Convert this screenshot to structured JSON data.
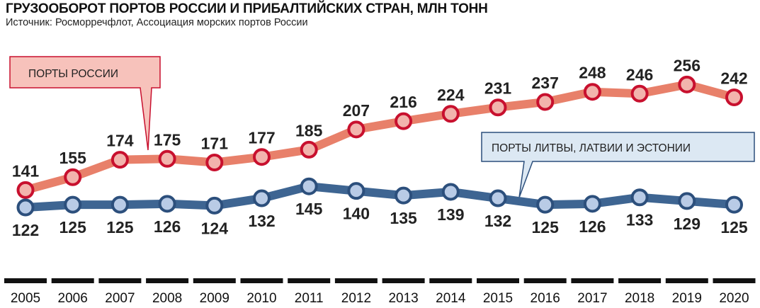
{
  "title": "ГРУЗООБОРОТ ПОРТОВ РОССИИ И ПРИБАЛТИЙСКИХ СТРАН, МЛН ТОНН",
  "subtitle": "Источник: Росморречфлот, Ассоциация морских портов России",
  "chart_data": {
    "type": "line",
    "categories": [
      "2005",
      "2006",
      "2007",
      "2008",
      "2009",
      "2010",
      "2011",
      "2012",
      "2013",
      "2014",
      "2015",
      "2016",
      "2017",
      "2018",
      "2019",
      "2020"
    ],
    "series": [
      {
        "name": "ПОРТЫ РОССИИ",
        "color": "#e8806a",
        "marker_border": "#c8102e",
        "values": [
          141,
          155,
          174,
          175,
          171,
          177,
          185,
          207,
          216,
          224,
          231,
          237,
          248,
          246,
          256,
          242
        ]
      },
      {
        "name": "ПОРТЫ ЛИТВЫ, ЛАТВИИ И ЭСТОНИИ",
        "color": "#3e6592",
        "marker_border": "#2c4f7c",
        "values": [
          122,
          125,
          125,
          126,
          124,
          132,
          145,
          140,
          135,
          139,
          132,
          125,
          126,
          133,
          129,
          125
        ]
      }
    ],
    "ylim": [
      90,
      280
    ],
    "grid": false,
    "legend": "callouts"
  }
}
